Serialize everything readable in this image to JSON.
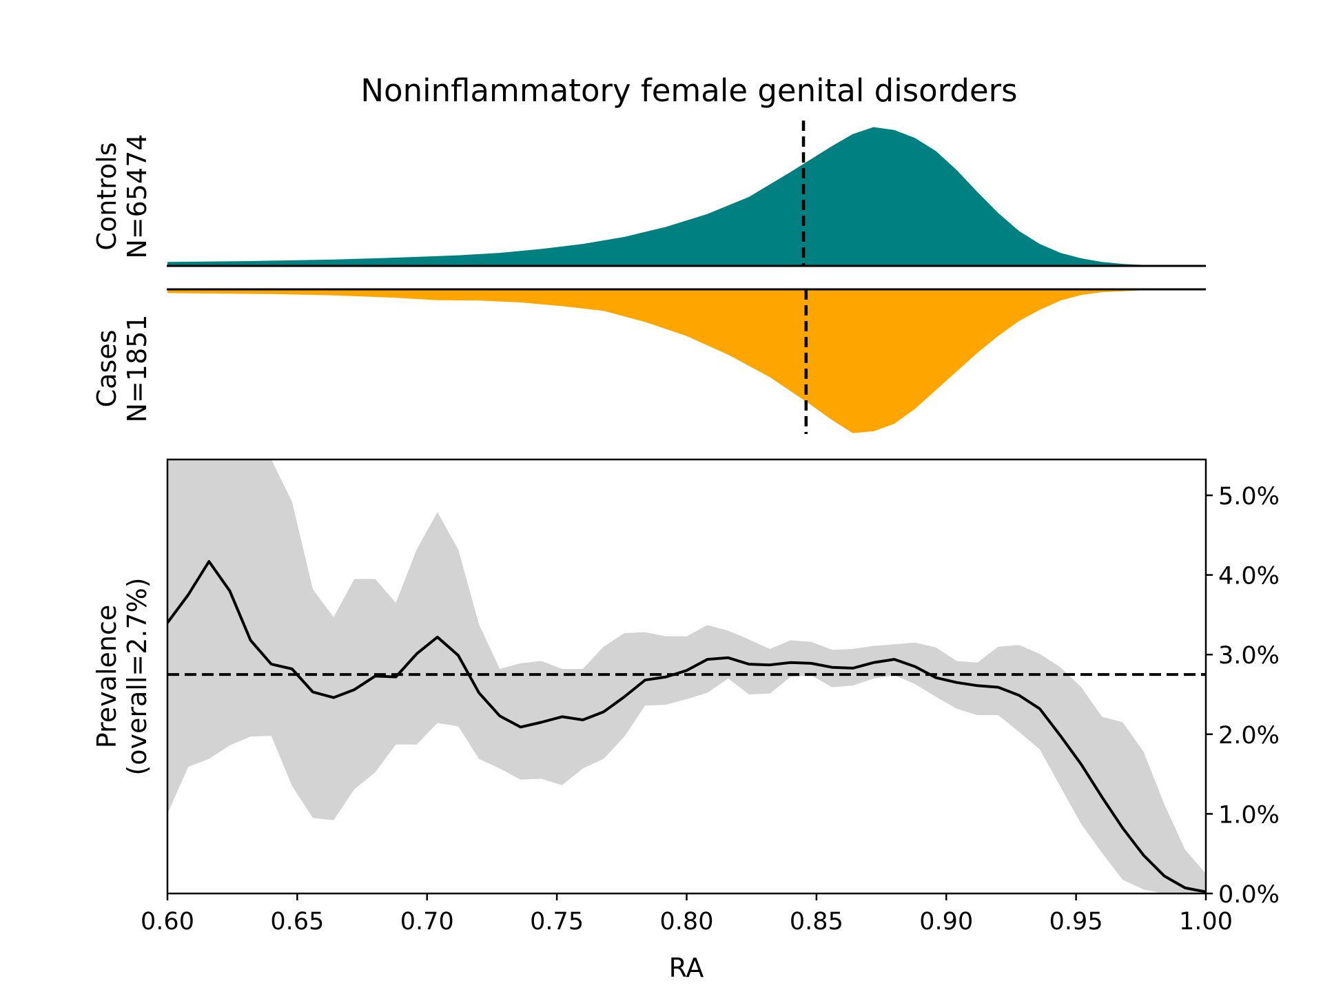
{
  "chart_data": {
    "type": "area",
    "title": "Noninflammatory female genital disorders",
    "xlabel": "RA",
    "xlim": [
      0.6,
      1.0
    ],
    "x_ticks": [
      "0.60",
      "0.65",
      "0.70",
      "0.75",
      "0.80",
      "0.85",
      "0.90",
      "0.95",
      "1.00"
    ],
    "panels": {
      "controls": {
        "label_line1": "Controls",
        "label_line2": "N=65474",
        "color": "#008080",
        "median_x": 0.845,
        "density": [
          [
            0.6,
            0.02
          ],
          [
            0.616,
            0.022
          ],
          [
            0.632,
            0.024
          ],
          [
            0.648,
            0.028
          ],
          [
            0.664,
            0.032
          ],
          [
            0.68,
            0.038
          ],
          [
            0.696,
            0.045
          ],
          [
            0.712,
            0.053
          ],
          [
            0.728,
            0.065
          ],
          [
            0.744,
            0.085
          ],
          [
            0.76,
            0.11
          ],
          [
            0.776,
            0.145
          ],
          [
            0.792,
            0.195
          ],
          [
            0.808,
            0.26
          ],
          [
            0.824,
            0.345
          ],
          [
            0.84,
            0.47
          ],
          [
            0.856,
            0.6
          ],
          [
            0.864,
            0.66
          ],
          [
            0.872,
            0.695
          ],
          [
            0.88,
            0.68
          ],
          [
            0.888,
            0.64
          ],
          [
            0.896,
            0.575
          ],
          [
            0.904,
            0.48
          ],
          [
            0.912,
            0.37
          ],
          [
            0.92,
            0.265
          ],
          [
            0.928,
            0.175
          ],
          [
            0.936,
            0.11
          ],
          [
            0.944,
            0.065
          ],
          [
            0.952,
            0.038
          ],
          [
            0.96,
            0.02
          ],
          [
            0.968,
            0.01
          ],
          [
            0.976,
            0.005
          ],
          [
            0.984,
            0.002
          ],
          [
            1.0,
            0.0
          ]
        ]
      },
      "cases": {
        "label_line1": "Cases",
        "label_line2": "N=1851",
        "color": "#ffa500",
        "median_x": 0.846,
        "density": [
          [
            0.6,
            0.02
          ],
          [
            0.616,
            0.022
          ],
          [
            0.64,
            0.025
          ],
          [
            0.664,
            0.032
          ],
          [
            0.688,
            0.045
          ],
          [
            0.704,
            0.058
          ],
          [
            0.72,
            0.06
          ],
          [
            0.736,
            0.07
          ],
          [
            0.752,
            0.09
          ],
          [
            0.768,
            0.115
          ],
          [
            0.784,
            0.175
          ],
          [
            0.8,
            0.25
          ],
          [
            0.816,
            0.35
          ],
          [
            0.832,
            0.47
          ],
          [
            0.848,
            0.62
          ],
          [
            0.856,
            0.7
          ],
          [
            0.864,
            0.77
          ],
          [
            0.872,
            0.76
          ],
          [
            0.88,
            0.72
          ],
          [
            0.888,
            0.64
          ],
          [
            0.896,
            0.54
          ],
          [
            0.904,
            0.44
          ],
          [
            0.912,
            0.34
          ],
          [
            0.92,
            0.25
          ],
          [
            0.928,
            0.17
          ],
          [
            0.936,
            0.11
          ],
          [
            0.944,
            0.06
          ],
          [
            0.952,
            0.03
          ],
          [
            0.96,
            0.015
          ],
          [
            0.976,
            0.005
          ],
          [
            1.0,
            0.0
          ]
        ]
      }
    },
    "prevalence": {
      "ylabel_line1": "Prevalence",
      "ylabel_line2": "(overall=2.7%)",
      "overall": 2.75,
      "ylim": [
        0,
        5.45
      ],
      "y_ticks": [
        "0.0%",
        "1.0%",
        "2.0%",
        "3.0%",
        "4.0%",
        "5.0%"
      ],
      "y_tick_values": [
        0,
        1,
        2,
        3,
        4,
        5
      ],
      "line_color": "#000000",
      "band_color": "#d3d3d3",
      "x": [
        0.6,
        0.608,
        0.616,
        0.624,
        0.632,
        0.64,
        0.648,
        0.656,
        0.664,
        0.672,
        0.68,
        0.688,
        0.696,
        0.704,
        0.712,
        0.72,
        0.728,
        0.736,
        0.744,
        0.752,
        0.76,
        0.768,
        0.776,
        0.784,
        0.792,
        0.8,
        0.808,
        0.816,
        0.824,
        0.832,
        0.84,
        0.848,
        0.856,
        0.864,
        0.872,
        0.88,
        0.888,
        0.896,
        0.904,
        0.912,
        0.92,
        0.928,
        0.936,
        0.944,
        0.952,
        0.96,
        0.968,
        0.976,
        0.984,
        0.992,
        1.0
      ],
      "y": [
        3.4,
        3.75,
        4.17,
        3.8,
        3.18,
        2.88,
        2.82,
        2.53,
        2.46,
        2.56,
        2.73,
        2.72,
        3.01,
        3.22,
        2.99,
        2.52,
        2.23,
        2.09,
        2.15,
        2.22,
        2.18,
        2.28,
        2.47,
        2.68,
        2.72,
        2.8,
        2.94,
        2.96,
        2.88,
        2.87,
        2.9,
        2.89,
        2.84,
        2.83,
        2.9,
        2.94,
        2.85,
        2.71,
        2.65,
        2.61,
        2.59,
        2.49,
        2.32,
        1.98,
        1.62,
        1.21,
        0.82,
        0.48,
        0.22,
        0.07,
        0.02
      ],
      "upper": [
        5.45,
        5.45,
        5.45,
        5.45,
        5.45,
        5.45,
        4.92,
        3.82,
        3.47,
        3.95,
        3.95,
        3.65,
        4.32,
        4.79,
        4.32,
        3.38,
        2.82,
        2.89,
        2.92,
        2.82,
        2.82,
        3.1,
        3.27,
        3.28,
        3.23,
        3.23,
        3.37,
        3.3,
        3.19,
        3.07,
        3.18,
        3.16,
        3.06,
        3.07,
        3.11,
        3.13,
        3.15,
        3.09,
        2.92,
        2.9,
        3.1,
        3.12,
        3.01,
        2.84,
        2.59,
        2.22,
        2.15,
        1.78,
        1.12,
        0.55,
        0.25
      ],
      "lower": [
        1.0,
        1.59,
        1.69,
        1.86,
        1.97,
        1.98,
        1.35,
        0.95,
        0.92,
        1.31,
        1.52,
        1.87,
        1.87,
        2.14,
        2.1,
        1.69,
        1.57,
        1.43,
        1.44,
        1.36,
        1.57,
        1.69,
        1.97,
        2.36,
        2.37,
        2.44,
        2.52,
        2.7,
        2.5,
        2.51,
        2.72,
        2.74,
        2.59,
        2.61,
        2.7,
        2.74,
        2.63,
        2.47,
        2.32,
        2.24,
        2.24,
        2.03,
        1.81,
        1.34,
        0.87,
        0.51,
        0.17,
        0.05,
        0.0,
        0.0,
        0.0
      ]
    }
  }
}
